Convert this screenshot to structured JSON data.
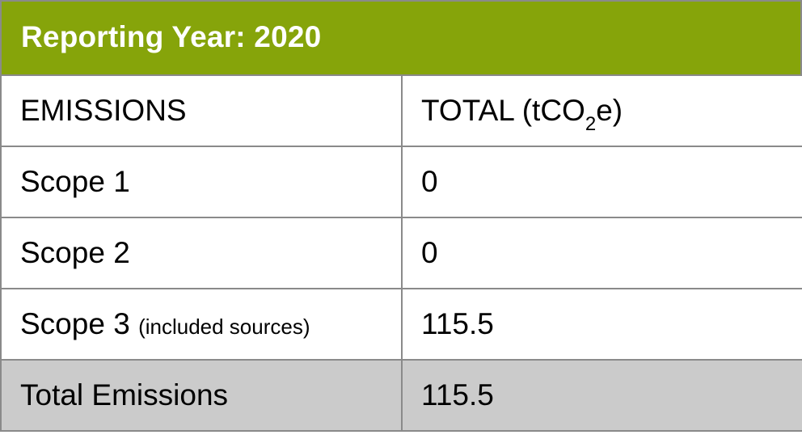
{
  "header": {
    "title": "Reporting Year: 2020",
    "background_color": "#86a40a"
  },
  "columns": {
    "label_header": "EMISSIONS",
    "value_header_prefix": "TOTAL (tCO",
    "value_header_subscript": "2",
    "value_header_suffix": "e)"
  },
  "rows": [
    {
      "label": "Scope 1",
      "note": "",
      "value": "0"
    },
    {
      "label": "Scope 2",
      "note": "",
      "value": "0"
    },
    {
      "label": "Scope 3",
      "note": "(included sources)",
      "value": "115.5"
    }
  ],
  "total": {
    "label": "Total Emissions",
    "value": "115.5",
    "background_color": "#cbcbcb"
  }
}
